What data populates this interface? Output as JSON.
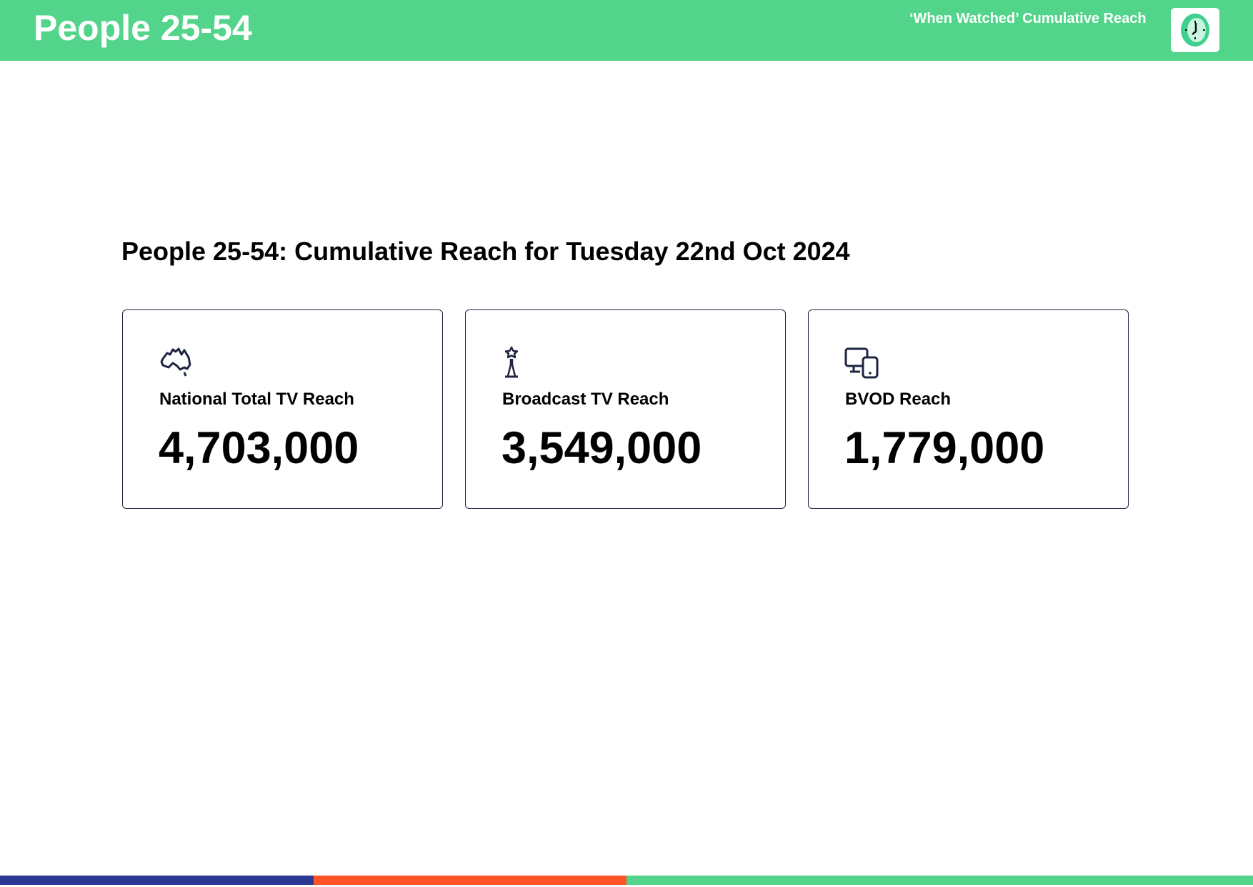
{
  "header": {
    "title": "People 25-54",
    "subtitle": "‘When Watched’ Cumulative Reach",
    "icon": "clock-icon",
    "background_color": "#52d48a"
  },
  "main": {
    "heading": "People 25-54: Cumulative Reach for Tuesday 22nd Oct 2024",
    "cards": [
      {
        "label": "National Total TV Reach",
        "value": "4,703,000",
        "icon": "australia-map-icon"
      },
      {
        "label": "Broadcast TV Reach",
        "value": "3,549,000",
        "icon": "broadcast-tower-icon"
      },
      {
        "label": "BVOD Reach",
        "value": "1,779,000",
        "icon": "devices-icon"
      }
    ]
  },
  "footer": {
    "stripe_colors": [
      "#2b3894",
      "#ff5428",
      "#52d48a"
    ]
  }
}
